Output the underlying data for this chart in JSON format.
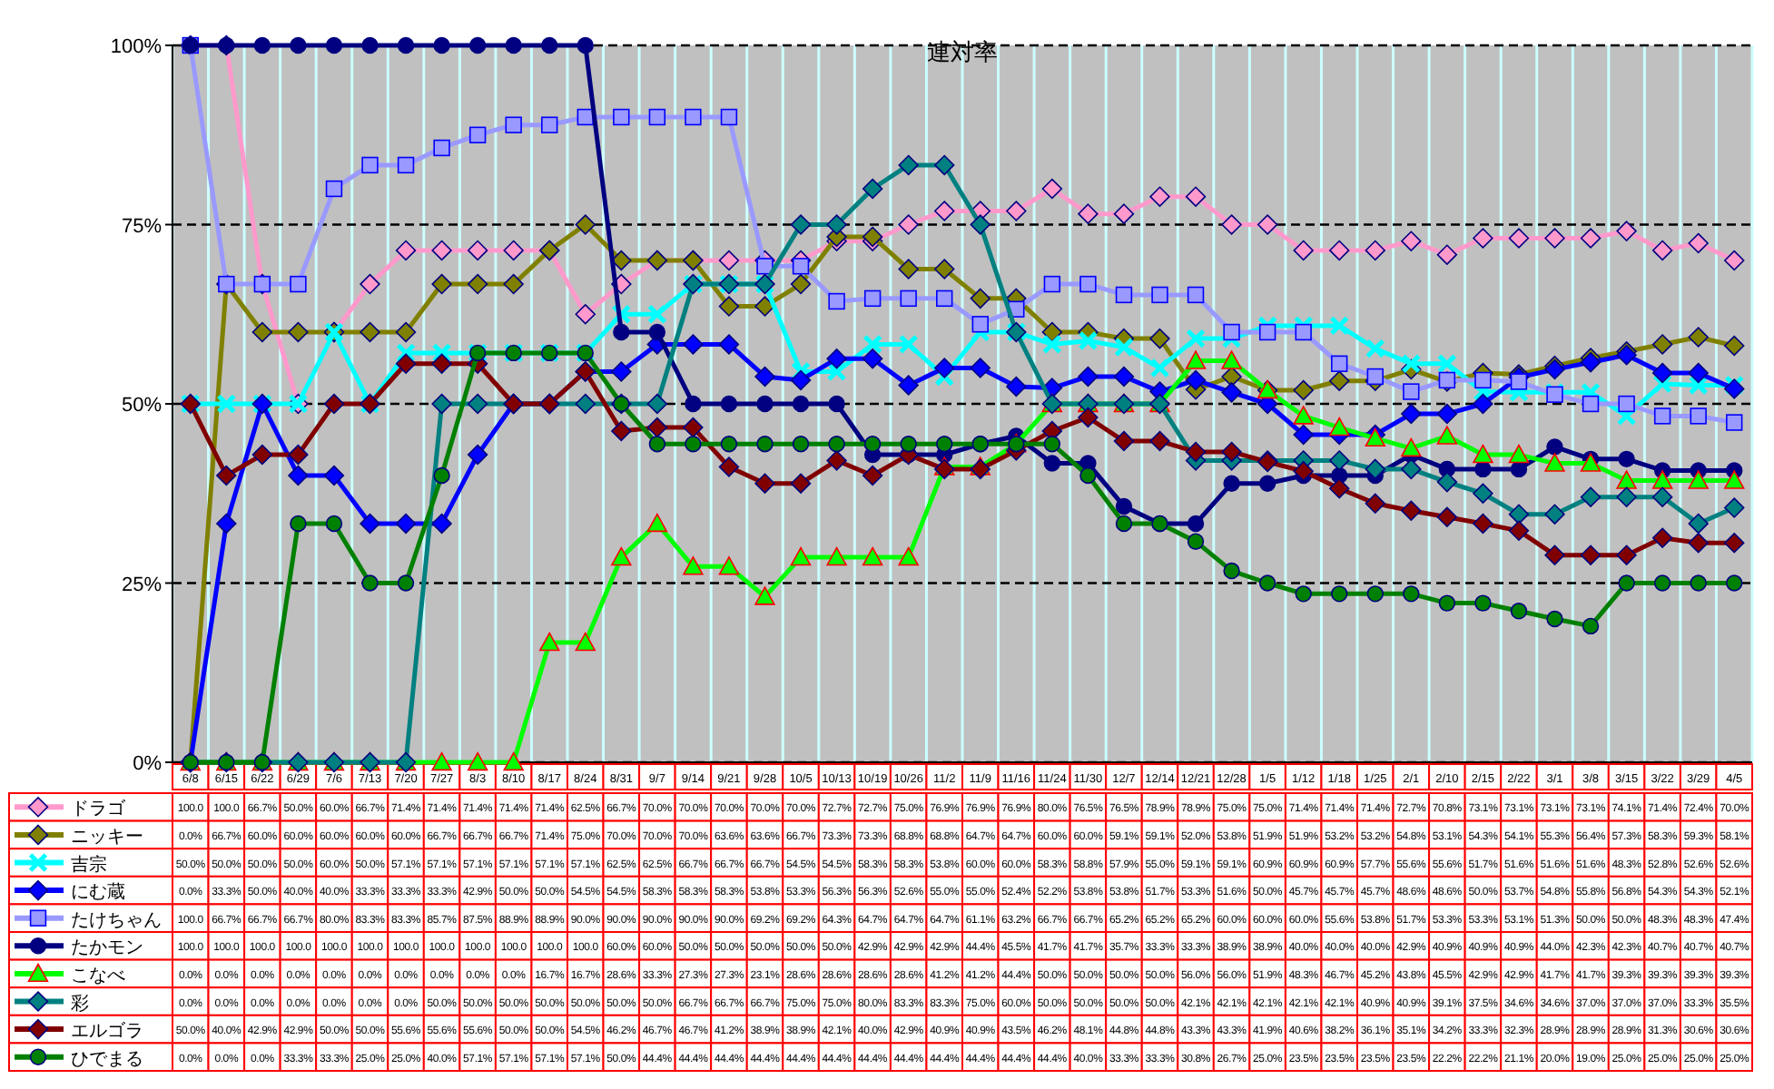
{
  "chart_data": {
    "type": "line",
    "title": "連対率",
    "categories": [
      "6/8",
      "6/15",
      "6/22",
      "6/29",
      "7/6",
      "7/13",
      "7/20",
      "7/27",
      "8/3",
      "8/10",
      "8/17",
      "8/24",
      "8/31",
      "9/7",
      "9/14",
      "9/21",
      "9/28",
      "10/5",
      "10/13",
      "10/19",
      "10/26",
      "11/2",
      "11/9",
      "11/16",
      "11/24",
      "11/30",
      "12/7",
      "12/14",
      "12/21",
      "12/28",
      "1/5",
      "1/12",
      "1/18",
      "1/25",
      "2/1",
      "2/10",
      "2/15",
      "2/22",
      "3/1",
      "3/8",
      "3/15",
      "3/22",
      "3/29",
      "4/5"
    ],
    "ylim": [
      0,
      100
    ],
    "yticks": [
      {
        "value": 0,
        "label": "0%"
      },
      {
        "value": 25,
        "label": "25%"
      },
      {
        "value": 50,
        "label": "50%"
      },
      {
        "value": 75,
        "label": "75%"
      },
      {
        "value": 100,
        "label": "100%"
      }
    ],
    "grid": true,
    "legend": "bottom",
    "line_style": "solid",
    "series": [
      {
        "name": "ドラゴ",
        "color": "#ff99cc",
        "marker": "diamond",
        "values": [
          100.0,
          100.0,
          66.7,
          50.0,
          60.0,
          66.7,
          71.4,
          71.4,
          71.4,
          71.4,
          71.4,
          62.5,
          66.7,
          70.0,
          70.0,
          70.0,
          70.0,
          70.0,
          72.7,
          72.7,
          75.0,
          76.9,
          76.9,
          76.9,
          80.0,
          76.5,
          76.5,
          78.9,
          78.9,
          75.0,
          75.0,
          71.4,
          71.4,
          71.4,
          72.7,
          70.8,
          73.1,
          73.1,
          73.1,
          73.1,
          74.1,
          71.4,
          72.4,
          70.0
        ],
        "value_labels": [
          "100.0",
          "100.0",
          "66.7%",
          "50.0%",
          "60.0%",
          "66.7%",
          "71.4%",
          "71.4%",
          "71.4%",
          "71.4%",
          "71.4%",
          "62.5%",
          "66.7%",
          "70.0%",
          "70.0%",
          "70.0%",
          "70.0%",
          "70.0%",
          "72.7%",
          "72.7%",
          "75.0%",
          "76.9%",
          "76.9%",
          "76.9%",
          "80.0%",
          "76.5%",
          "76.5%",
          "78.9%",
          "78.9%",
          "75.0%",
          "75.0%",
          "71.4%",
          "71.4%",
          "71.4%",
          "72.7%",
          "70.8%",
          "73.1%",
          "73.1%",
          "73.1%",
          "73.1%",
          "74.1%",
          "71.4%",
          "72.4%",
          "70.0%"
        ]
      },
      {
        "name": "ニッキー",
        "color": "#808000",
        "marker": "diamond",
        "values": [
          0.0,
          66.7,
          60.0,
          60.0,
          60.0,
          60.0,
          60.0,
          66.7,
          66.7,
          66.7,
          71.4,
          75.0,
          70.0,
          70.0,
          70.0,
          63.6,
          63.6,
          66.7,
          73.3,
          73.3,
          68.8,
          68.8,
          64.7,
          64.7,
          60.0,
          60.0,
          59.1,
          59.1,
          52.0,
          53.8,
          51.9,
          51.9,
          53.2,
          53.2,
          54.8,
          53.1,
          54.3,
          54.1,
          55.3,
          56.4,
          57.3,
          58.3,
          59.3,
          58.1
        ],
        "value_labels": [
          "0.0%",
          "66.7%",
          "60.0%",
          "60.0%",
          "60.0%",
          "60.0%",
          "60.0%",
          "66.7%",
          "66.7%",
          "66.7%",
          "71.4%",
          "75.0%",
          "70.0%",
          "70.0%",
          "70.0%",
          "63.6%",
          "63.6%",
          "66.7%",
          "73.3%",
          "73.3%",
          "68.8%",
          "68.8%",
          "64.7%",
          "64.7%",
          "60.0%",
          "60.0%",
          "59.1%",
          "59.1%",
          "52.0%",
          "53.8%",
          "51.9%",
          "51.9%",
          "53.2%",
          "53.2%",
          "54.8%",
          "53.1%",
          "54.3%",
          "54.1%",
          "55.3%",
          "56.4%",
          "57.3%",
          "58.3%",
          "59.3%",
          "58.1%"
        ]
      },
      {
        "name": "吉宗",
        "color": "#00ffff",
        "marker": "cross",
        "values": [
          50.0,
          50.0,
          50.0,
          50.0,
          60.0,
          50.0,
          57.1,
          57.1,
          57.1,
          57.1,
          57.1,
          57.1,
          62.5,
          62.5,
          66.7,
          66.7,
          66.7,
          54.5,
          54.5,
          58.3,
          58.3,
          53.8,
          60.0,
          60.0,
          58.3,
          58.8,
          57.9,
          55.0,
          59.1,
          59.1,
          60.9,
          60.9,
          60.9,
          57.7,
          55.6,
          55.6,
          51.7,
          51.6,
          51.6,
          51.6,
          48.3,
          52.8,
          52.6,
          52.6
        ],
        "value_labels": [
          "50.0%",
          "50.0%",
          "50.0%",
          "50.0%",
          "60.0%",
          "50.0%",
          "57.1%",
          "57.1%",
          "57.1%",
          "57.1%",
          "57.1%",
          "57.1%",
          "62.5%",
          "62.5%",
          "66.7%",
          "66.7%",
          "66.7%",
          "54.5%",
          "54.5%",
          "58.3%",
          "58.3%",
          "53.8%",
          "60.0%",
          "60.0%",
          "58.3%",
          "58.8%",
          "57.9%",
          "55.0%",
          "59.1%",
          "59.1%",
          "60.9%",
          "60.9%",
          "60.9%",
          "57.7%",
          "55.6%",
          "55.6%",
          "51.7%",
          "51.6%",
          "51.6%",
          "51.6%",
          "48.3%",
          "52.8%",
          "52.6%",
          "52.6%"
        ]
      },
      {
        "name": "にむ蔵",
        "color": "#0000ff",
        "marker": "diamond",
        "values": [
          0.0,
          33.3,
          50.0,
          40.0,
          40.0,
          33.3,
          33.3,
          33.3,
          42.9,
          50.0,
          50.0,
          54.5,
          54.5,
          58.3,
          58.3,
          58.3,
          53.8,
          53.3,
          56.3,
          56.3,
          52.6,
          55.0,
          55.0,
          52.4,
          52.2,
          53.8,
          53.8,
          51.7,
          53.3,
          51.6,
          50.0,
          45.7,
          45.7,
          45.7,
          48.6,
          48.6,
          50.0,
          53.7,
          54.8,
          55.8,
          56.8,
          54.3,
          54.3,
          52.1
        ],
        "value_labels": [
          "0.0%",
          "33.3%",
          "50.0%",
          "40.0%",
          "40.0%",
          "33.3%",
          "33.3%",
          "33.3%",
          "42.9%",
          "50.0%",
          "50.0%",
          "54.5%",
          "54.5%",
          "58.3%",
          "58.3%",
          "58.3%",
          "53.8%",
          "53.3%",
          "56.3%",
          "56.3%",
          "52.6%",
          "55.0%",
          "55.0%",
          "52.4%",
          "52.2%",
          "53.8%",
          "53.8%",
          "51.7%",
          "53.3%",
          "51.6%",
          "50.0%",
          "45.7%",
          "45.7%",
          "45.7%",
          "48.6%",
          "48.6%",
          "50.0%",
          "53.7%",
          "54.8%",
          "55.8%",
          "56.8%",
          "54.3%",
          "54.3%",
          "52.1%"
        ]
      },
      {
        "name": "たけちゃん",
        "color": "#9999ff",
        "marker": "square",
        "values": [
          100.0,
          66.7,
          66.7,
          66.7,
          80.0,
          83.3,
          83.3,
          85.7,
          87.5,
          88.9,
          88.9,
          90.0,
          90.0,
          90.0,
          90.0,
          90.0,
          69.2,
          69.2,
          64.3,
          64.7,
          64.7,
          64.7,
          61.1,
          63.2,
          66.7,
          66.7,
          65.2,
          65.2,
          65.2,
          60.0,
          60.0,
          60.0,
          55.6,
          53.8,
          51.7,
          53.3,
          53.3,
          53.1,
          51.3,
          50.0,
          50.0,
          48.3,
          48.3,
          47.4
        ],
        "value_labels": [
          "100.0",
          "66.7%",
          "66.7%",
          "66.7%",
          "80.0%",
          "83.3%",
          "83.3%",
          "85.7%",
          "87.5%",
          "88.9%",
          "88.9%",
          "90.0%",
          "90.0%",
          "90.0%",
          "90.0%",
          "90.0%",
          "69.2%",
          "69.2%",
          "64.3%",
          "64.7%",
          "64.7%",
          "64.7%",
          "61.1%",
          "63.2%",
          "66.7%",
          "66.7%",
          "65.2%",
          "65.2%",
          "65.2%",
          "60.0%",
          "60.0%",
          "60.0%",
          "55.6%",
          "53.8%",
          "51.7%",
          "53.3%",
          "53.3%",
          "53.1%",
          "51.3%",
          "50.0%",
          "50.0%",
          "48.3%",
          "48.3%",
          "47.4%"
        ]
      },
      {
        "name": "たかモン",
        "color": "#000080",
        "marker": "circle",
        "values": [
          100.0,
          100.0,
          100.0,
          100.0,
          100.0,
          100.0,
          100.0,
          100.0,
          100.0,
          100.0,
          100.0,
          100.0,
          60.0,
          60.0,
          50.0,
          50.0,
          50.0,
          50.0,
          50.0,
          42.9,
          42.9,
          42.9,
          44.4,
          45.5,
          41.7,
          41.7,
          35.7,
          33.3,
          33.3,
          38.9,
          38.9,
          40.0,
          40.0,
          40.0,
          42.9,
          40.9,
          40.9,
          40.9,
          44.0,
          42.3,
          42.3,
          40.7,
          40.7,
          40.7
        ],
        "value_labels": [
          "100.0",
          "100.0",
          "100.0",
          "100.0",
          "100.0",
          "100.0",
          "100.0",
          "100.0",
          "100.0",
          "100.0",
          "100.0",
          "100.0",
          "60.0%",
          "60.0%",
          "50.0%",
          "50.0%",
          "50.0%",
          "50.0%",
          "50.0%",
          "42.9%",
          "42.9%",
          "42.9%",
          "44.4%",
          "45.5%",
          "41.7%",
          "41.7%",
          "35.7%",
          "33.3%",
          "33.3%",
          "38.9%",
          "38.9%",
          "40.0%",
          "40.0%",
          "40.0%",
          "42.9%",
          "40.9%",
          "40.9%",
          "40.9%",
          "44.0%",
          "42.3%",
          "42.3%",
          "40.7%",
          "40.7%",
          "40.7%"
        ]
      },
      {
        "name": "こなべ",
        "color": "#00ff00",
        "marker": "triangle",
        "values": [
          0.0,
          0.0,
          0.0,
          0.0,
          0.0,
          0.0,
          0.0,
          0.0,
          0.0,
          0.0,
          16.7,
          16.7,
          28.6,
          33.3,
          27.3,
          27.3,
          23.1,
          28.6,
          28.6,
          28.6,
          28.6,
          41.2,
          41.2,
          44.4,
          50.0,
          50.0,
          50.0,
          50.0,
          56.0,
          56.0,
          51.9,
          48.3,
          46.7,
          45.2,
          43.8,
          45.5,
          42.9,
          42.9,
          41.7,
          41.7,
          39.3,
          39.3,
          39.3,
          39.3
        ],
        "value_labels": [
          "0.0%",
          "0.0%",
          "0.0%",
          "0.0%",
          "0.0%",
          "0.0%",
          "0.0%",
          "0.0%",
          "0.0%",
          "0.0%",
          "16.7%",
          "16.7%",
          "28.6%",
          "33.3%",
          "27.3%",
          "27.3%",
          "23.1%",
          "28.6%",
          "28.6%",
          "28.6%",
          "28.6%",
          "41.2%",
          "41.2%",
          "44.4%",
          "50.0%",
          "50.0%",
          "50.0%",
          "50.0%",
          "56.0%",
          "56.0%",
          "51.9%",
          "48.3%",
          "46.7%",
          "45.2%",
          "43.8%",
          "45.5%",
          "42.9%",
          "42.9%",
          "41.7%",
          "41.7%",
          "39.3%",
          "39.3%",
          "39.3%",
          "39.3%"
        ]
      },
      {
        "name": "彩",
        "color": "#008080",
        "marker": "diamond",
        "values": [
          0.0,
          0.0,
          0.0,
          0.0,
          0.0,
          0.0,
          0.0,
          50.0,
          50.0,
          50.0,
          50.0,
          50.0,
          50.0,
          50.0,
          66.7,
          66.7,
          66.7,
          75.0,
          75.0,
          80.0,
          83.3,
          83.3,
          75.0,
          60.0,
          50.0,
          50.0,
          50.0,
          50.0,
          42.1,
          42.1,
          42.1,
          42.1,
          42.1,
          40.9,
          40.9,
          39.1,
          37.5,
          34.6,
          34.6,
          37.0,
          37.0,
          37.0,
          33.3,
          35.5
        ],
        "value_labels": [
          "0.0%",
          "0.0%",
          "0.0%",
          "0.0%",
          "0.0%",
          "0.0%",
          "0.0%",
          "50.0%",
          "50.0%",
          "50.0%",
          "50.0%",
          "50.0%",
          "50.0%",
          "50.0%",
          "66.7%",
          "66.7%",
          "66.7%",
          "75.0%",
          "75.0%",
          "80.0%",
          "83.3%",
          "83.3%",
          "75.0%",
          "60.0%",
          "50.0%",
          "50.0%",
          "50.0%",
          "50.0%",
          "42.1%",
          "42.1%",
          "42.1%",
          "42.1%",
          "42.1%",
          "40.9%",
          "40.9%",
          "39.1%",
          "37.5%",
          "34.6%",
          "34.6%",
          "37.0%",
          "37.0%",
          "37.0%",
          "33.3%",
          "35.5%"
        ]
      },
      {
        "name": "エルゴラ",
        "color": "#800000",
        "marker": "diamond",
        "values": [
          50.0,
          40.0,
          42.9,
          42.9,
          50.0,
          50.0,
          55.6,
          55.6,
          55.6,
          50.0,
          50.0,
          54.5,
          46.2,
          46.7,
          46.7,
          41.2,
          38.9,
          38.9,
          42.1,
          40.0,
          42.9,
          40.9,
          40.9,
          43.5,
          46.2,
          48.1,
          44.8,
          44.8,
          43.3,
          43.3,
          41.9,
          40.6,
          38.2,
          36.1,
          35.1,
          34.2,
          33.3,
          32.3,
          28.9,
          28.9,
          28.9,
          31.3,
          30.6,
          30.6
        ],
        "value_labels": [
          "50.0%",
          "40.0%",
          "42.9%",
          "42.9%",
          "50.0%",
          "50.0%",
          "55.6%",
          "55.6%",
          "55.6%",
          "50.0%",
          "50.0%",
          "54.5%",
          "46.2%",
          "46.7%",
          "46.7%",
          "41.2%",
          "38.9%",
          "38.9%",
          "42.1%",
          "40.0%",
          "42.9%",
          "40.9%",
          "40.9%",
          "43.5%",
          "46.2%",
          "48.1%",
          "44.8%",
          "44.8%",
          "43.3%",
          "43.3%",
          "41.9%",
          "40.6%",
          "38.2%",
          "36.1%",
          "35.1%",
          "34.2%",
          "33.3%",
          "32.3%",
          "28.9%",
          "28.9%",
          "28.9%",
          "31.3%",
          "30.6%",
          "30.6%"
        ]
      },
      {
        "name": "ひでまる",
        "color": "#008000",
        "marker": "circle",
        "values": [
          0.0,
          0.0,
          0.0,
          33.3,
          33.3,
          25.0,
          25.0,
          40.0,
          57.1,
          57.1,
          57.1,
          57.1,
          50.0,
          44.4,
          44.4,
          44.4,
          44.4,
          44.4,
          44.4,
          44.4,
          44.4,
          44.4,
          44.4,
          44.4,
          44.4,
          40.0,
          33.3,
          33.3,
          30.8,
          26.7,
          25.0,
          23.5,
          23.5,
          23.5,
          23.5,
          22.2,
          22.2,
          21.1,
          20.0,
          19.0,
          25.0,
          25.0,
          25.0,
          25.0
        ],
        "value_labels": [
          "0.0%",
          "0.0%",
          "0.0%",
          "33.3%",
          "33.3%",
          "25.0%",
          "25.0%",
          "40.0%",
          "57.1%",
          "57.1%",
          "57.1%",
          "57.1%",
          "50.0%",
          "44.4%",
          "44.4%",
          "44.4%",
          "44.4%",
          "44.4%",
          "44.4%",
          "44.4%",
          "44.4%",
          "44.4%",
          "44.4%",
          "44.4%",
          "44.4%",
          "40.0%",
          "33.3%",
          "33.3%",
          "30.8%",
          "26.7%",
          "25.0%",
          "23.5%",
          "23.5%",
          "23.5%",
          "23.5%",
          "22.2%",
          "22.2%",
          "21.1%",
          "20.0%",
          "19.0%",
          "25.0%",
          "25.0%",
          "25.0%",
          "25.0%"
        ]
      }
    ]
  }
}
